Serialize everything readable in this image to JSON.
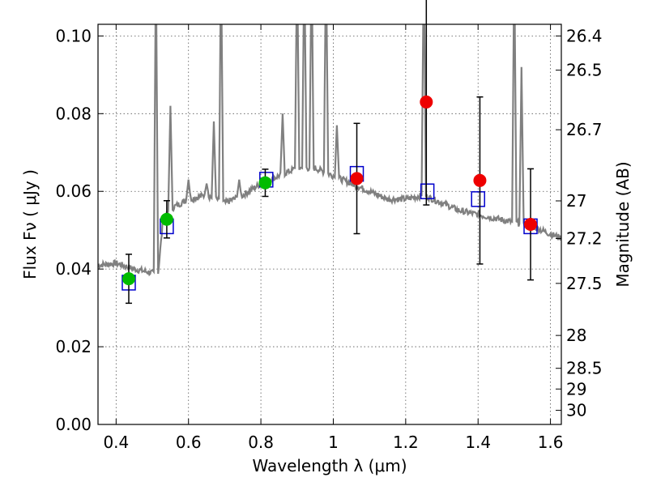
{
  "chart_data": {
    "type": "scatter",
    "xlabel": "Wavelength  λ (μm)",
    "ylabel": "Flux  Fν  ( μJy )",
    "right_ylabel": "Magnitude (AB)",
    "xlim": [
      0.35,
      1.63
    ],
    "ylim": [
      0.0,
      0.103
    ],
    "x_ticks": [
      {
        "value": 0.4,
        "label": "0.4"
      },
      {
        "value": 0.6,
        "label": "0.6"
      },
      {
        "value": 0.8,
        "label": "0.8"
      },
      {
        "value": 1.0,
        "label": "1"
      },
      {
        "value": 1.2,
        "label": "1.2"
      },
      {
        "value": 1.4,
        "label": "1.4"
      },
      {
        "value": 1.6,
        "label": "1.6"
      }
    ],
    "y_ticks": [
      {
        "value": 0.0,
        "label": "0.00"
      },
      {
        "value": 0.02,
        "label": "0.02"
      },
      {
        "value": 0.04,
        "label": "0.04"
      },
      {
        "value": 0.06,
        "label": "0.06"
      },
      {
        "value": 0.08,
        "label": "0.08"
      },
      {
        "value": 0.1,
        "label": "0.10"
      }
    ],
    "right_ticks": [
      {
        "mag": 26.4,
        "label": "26.4"
      },
      {
        "mag": 26.5,
        "label": "26.5"
      },
      {
        "mag": 26.7,
        "label": "26.7"
      },
      {
        "mag": 27.0,
        "label": "27"
      },
      {
        "mag": 27.2,
        "label": "27.2"
      },
      {
        "mag": 27.5,
        "label": "27.5"
      },
      {
        "mag": 28.0,
        "label": "28"
      },
      {
        "mag": 28.5,
        "label": "28.5"
      },
      {
        "mag": 29.0,
        "label": "29"
      },
      {
        "mag": 30.0,
        "label": "30"
      }
    ],
    "grid": true,
    "colors": {
      "spectrum": "#808080",
      "model": "#0000cc",
      "optical": "#00bb00",
      "infrared": "#ee0000",
      "errorbar": "#000000"
    },
    "spectrum": {
      "continuum": [
        [
          0.35,
          0.041
        ],
        [
          0.4,
          0.0415
        ],
        [
          0.45,
          0.04
        ],
        [
          0.5,
          0.039
        ],
        [
          0.515,
          0.038
        ],
        [
          0.53,
          0.053
        ],
        [
          0.56,
          0.056
        ],
        [
          0.6,
          0.058
        ],
        [
          0.65,
          0.059
        ],
        [
          0.7,
          0.057
        ],
        [
          0.75,
          0.059
        ],
        [
          0.8,
          0.062
        ],
        [
          0.85,
          0.064
        ],
        [
          0.9,
          0.066
        ],
        [
          0.95,
          0.066
        ],
        [
          1.0,
          0.064
        ],
        [
          1.05,
          0.062
        ],
        [
          1.1,
          0.06
        ],
        [
          1.15,
          0.058
        ],
        [
          1.2,
          0.058
        ],
        [
          1.25,
          0.059
        ],
        [
          1.3,
          0.057
        ],
        [
          1.35,
          0.055
        ],
        [
          1.4,
          0.054
        ],
        [
          1.45,
          0.053
        ],
        [
          1.5,
          0.052
        ],
        [
          1.55,
          0.051
        ],
        [
          1.6,
          0.049
        ],
        [
          1.63,
          0.048
        ]
      ],
      "lines": [
        {
          "x": 0.51,
          "peak": 0.12
        },
        {
          "x": 0.55,
          "peak": 0.082
        },
        {
          "x": 0.6,
          "peak": 0.063
        },
        {
          "x": 0.65,
          "peak": 0.062
        },
        {
          "x": 0.67,
          "peak": 0.078
        },
        {
          "x": 0.69,
          "peak": 0.12
        },
        {
          "x": 0.74,
          "peak": 0.063
        },
        {
          "x": 0.86,
          "peak": 0.08
        },
        {
          "x": 0.9,
          "peak": 0.12
        },
        {
          "x": 0.92,
          "peak": 0.12
        },
        {
          "x": 0.94,
          "peak": 0.12
        },
        {
          "x": 0.98,
          "peak": 0.12
        },
        {
          "x": 1.01,
          "peak": 0.077
        },
        {
          "x": 1.25,
          "peak": 0.12
        },
        {
          "x": 1.5,
          "peak": 0.12
        },
        {
          "x": 1.52,
          "peak": 0.092
        }
      ]
    },
    "series": [
      {
        "marker": "square",
        "points": [
          {
            "x": 0.435,
            "y": 0.0365
          },
          {
            "x": 0.54,
            "y": 0.051
          },
          {
            "x": 0.815,
            "y": 0.063
          },
          {
            "x": 1.065,
            "y": 0.0645
          },
          {
            "x": 1.26,
            "y": 0.06
          },
          {
            "x": 1.4,
            "y": 0.058
          },
          {
            "x": 1.545,
            "y": 0.051
          }
        ]
      },
      {
        "marker": "circle",
        "color_key": "optical",
        "points": [
          {
            "x": 0.435,
            "y": 0.0375,
            "err": 0.0063
          },
          {
            "x": 0.54,
            "y": 0.0528,
            "err": 0.0048
          },
          {
            "x": 0.812,
            "y": 0.0622,
            "err": 0.0035
          }
        ]
      },
      {
        "marker": "circle",
        "color_key": "infrared",
        "points": [
          {
            "x": 1.065,
            "y": 0.0633,
            "err": 0.0142
          },
          {
            "x": 1.257,
            "y": 0.083,
            "err": 0.0265
          },
          {
            "x": 1.405,
            "y": 0.0628,
            "err": 0.0215
          },
          {
            "x": 1.545,
            "y": 0.0515,
            "err": 0.0143
          }
        ]
      }
    ]
  }
}
